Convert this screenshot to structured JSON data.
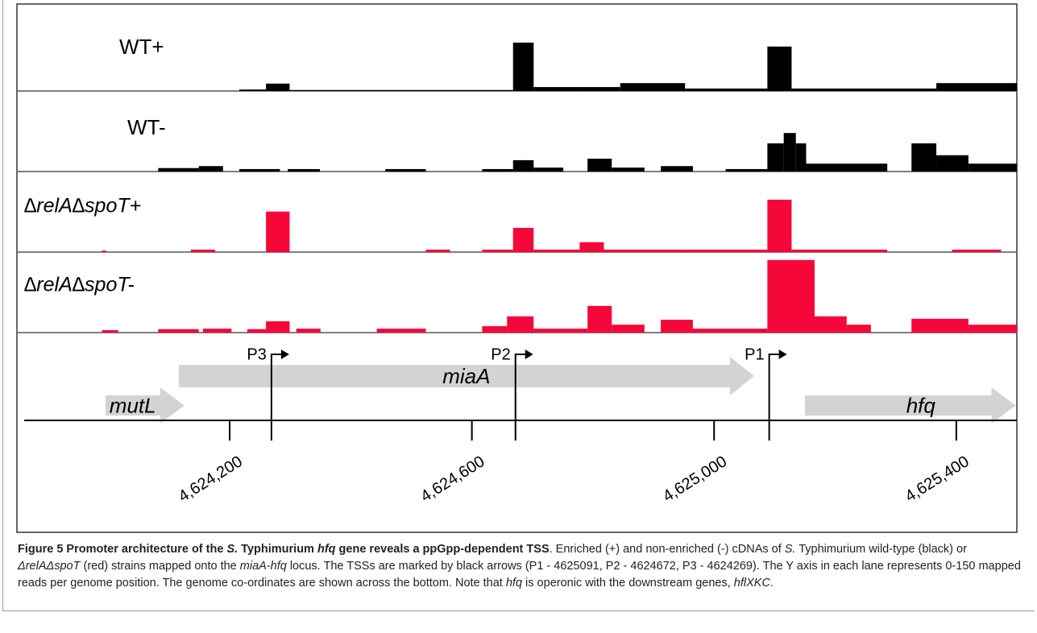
{
  "figure": {
    "type": "genome-tracks",
    "xlim": [
      4623850,
      4625500
    ],
    "ylim": [
      0,
      150
    ],
    "xticks": [
      {
        "value": 4624200,
        "label": "4,624,200"
      },
      {
        "value": 4624600,
        "label": "4,624,600"
      },
      {
        "value": 4625000,
        "label": "4,625,000"
      },
      {
        "value": 4625400,
        "label": "4,625,400"
      }
    ],
    "tracks": [
      {
        "name": "WT+",
        "color": "#000000",
        "segments": [
          [
            4624216,
            4624260,
            3
          ],
          [
            4624260,
            4624299,
            15
          ],
          [
            4624299,
            4624668,
            2
          ],
          [
            4624668,
            4624702,
            98
          ],
          [
            4624702,
            4624778,
            8
          ],
          [
            4624778,
            4624845,
            8
          ],
          [
            4624845,
            4624952,
            16
          ],
          [
            4624952,
            4625088,
            5
          ],
          [
            4625088,
            4625128,
            90
          ],
          [
            4625128,
            4625367,
            5
          ],
          [
            4625367,
            4625500,
            16
          ]
        ]
      },
      {
        "name": "WT-",
        "color": "#000000",
        "segments": [
          [
            4624082,
            4624149,
            7
          ],
          [
            4624149,
            4624189,
            11
          ],
          [
            4624216,
            4624283,
            5
          ],
          [
            4624296,
            4624349,
            5
          ],
          [
            4624457,
            4624524,
            5
          ],
          [
            4624617,
            4624668,
            5
          ],
          [
            4624668,
            4624702,
            23
          ],
          [
            4624702,
            4624751,
            8
          ],
          [
            4624791,
            4624831,
            26
          ],
          [
            4624831,
            4624885,
            8
          ],
          [
            4624912,
            4624965,
            11
          ],
          [
            4625019,
            4625088,
            5
          ],
          [
            4625088,
            4625115,
            57
          ],
          [
            4625115,
            4625135,
            78
          ],
          [
            4625135,
            4625152,
            57
          ],
          [
            4625152,
            4625286,
            16
          ],
          [
            4625326,
            4625367,
            57
          ],
          [
            4625367,
            4625420,
            33
          ],
          [
            4625420,
            4625500,
            16
          ]
        ]
      },
      {
        "name": "∆relA∆spoT+",
        "color": "#f5073a",
        "segments": [
          [
            4623989,
            4623996,
            3
          ],
          [
            4624136,
            4624176,
            5
          ],
          [
            4624260,
            4624299,
            82
          ],
          [
            4624524,
            4624564,
            5
          ],
          [
            4624617,
            4624668,
            5
          ],
          [
            4624668,
            4624702,
            49
          ],
          [
            4624702,
            4624778,
            5
          ],
          [
            4624778,
            4624818,
            20
          ],
          [
            4624818,
            4624952,
            5
          ],
          [
            4624952,
            4625088,
            5
          ],
          [
            4625088,
            4625128,
            106
          ],
          [
            4625128,
            4625286,
            5
          ],
          [
            4625393,
            4625474,
            5
          ]
        ]
      },
      {
        "name": "∆relA∆spoT-",
        "color": "#f5073a",
        "segments": [
          [
            4623989,
            4624016,
            5
          ],
          [
            4624082,
            4624149,
            7
          ],
          [
            4624156,
            4624203,
            8
          ],
          [
            4624229,
            4624260,
            7
          ],
          [
            4624260,
            4624299,
            23
          ],
          [
            4624310,
            4624350,
            8
          ],
          [
            4624443,
            4624524,
            8
          ],
          [
            4624617,
            4624658,
            13
          ],
          [
            4624658,
            4624702,
            33
          ],
          [
            4624702,
            4624791,
            8
          ],
          [
            4624791,
            4624831,
            54
          ],
          [
            4624831,
            4624885,
            16
          ],
          [
            4624912,
            4624965,
            26
          ],
          [
            4624965,
            4625088,
            8
          ],
          [
            4625088,
            4625166,
            147
          ],
          [
            4625166,
            4625219,
            33
          ],
          [
            4625219,
            4625259,
            16
          ],
          [
            4625326,
            4625420,
            28
          ],
          [
            4625420,
            4625500,
            16
          ]
        ]
      }
    ],
    "genes": [
      {
        "name": "mutL",
        "start": 4623995,
        "end": 4624125
      },
      {
        "name": "miaA",
        "start": 4624116,
        "end": 4625066
      },
      {
        "name": "hfq",
        "start": 4625150,
        "end": 4625498
      }
    ],
    "promoters": [
      {
        "name": "P3",
        "position": 4624269
      },
      {
        "name": "P2",
        "position": 4624672
      },
      {
        "name": "P1",
        "position": 4625091
      }
    ]
  },
  "caption": {
    "parts": [
      "Figure 5 Promoter architecture of the ",
      "S.",
      " Typhimurium ",
      "hfq",
      " gene reveals a ppGpp-dependent TSS",
      ". Enriched (+) and non-enriched (-) cDNAs of ",
      "S.",
      " Typhimurium wild-type (black) or ",
      "ΔrelAΔspoT",
      " (red) strains mapped onto the ",
      "miaA-hfq",
      " locus. The TSSs are marked by black arrows (P1 - 4625091, P2 - 4624672, P3 - 4624269). The Y axis in each lane represents 0-150 mapped reads per genome position. The genome co-ordinates are shown across the bottom. Note that ",
      "hfq",
      " is operonic with the downstream genes, ",
      "hflXKC",
      "."
    ]
  }
}
